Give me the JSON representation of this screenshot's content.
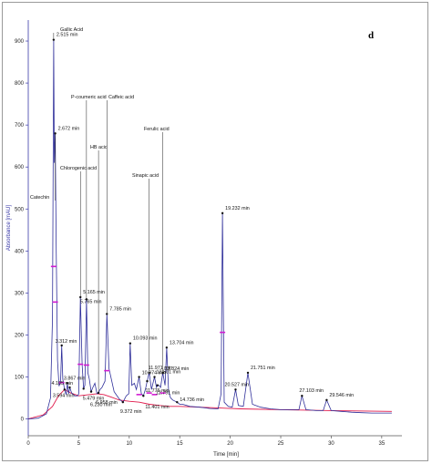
{
  "chart_data": {
    "type": "line",
    "panel_letter": "d",
    "xlabel": "Time [min]",
    "ylabel": "Absorbance [mAU]",
    "xlim": [
      0,
      37
    ],
    "ylim": [
      -40,
      950
    ],
    "x_ticks": [
      0,
      5,
      10,
      15,
      20,
      25,
      30,
      35
    ],
    "y_ticks": [
      0,
      100,
      200,
      300,
      400,
      500,
      600,
      700,
      800,
      900
    ],
    "grid": false,
    "colors": {
      "signal": "#2f2f9a",
      "baseline": "#e0184a",
      "marker": "#d21ad2",
      "axis": "#3a3aa8"
    },
    "series": [
      {
        "name": "",
        "x": [
          0,
          1.0,
          1.8,
          2.2,
          2.4,
          2.515,
          2.58,
          2.672,
          2.76,
          2.9,
          3.05,
          3.2,
          3.312,
          3.42,
          3.594,
          3.75,
          3.867,
          4.0,
          4.105,
          4.3,
          4.6,
          4.9,
          5.0,
          5.165,
          5.33,
          5.479,
          5.6,
          5.765,
          5.9,
          6.05,
          6.23,
          6.4,
          6.6,
          6.8,
          6.958,
          7.1,
          7.3,
          7.6,
          7.785,
          8.0,
          8.5,
          9.0,
          9.372,
          9.7,
          9.95,
          10.093,
          10.25,
          10.5,
          10.7,
          10.974,
          11.2,
          11.401,
          11.6,
          11.776,
          11.971,
          12.2,
          12.501,
          12.7,
          12.791,
          12.95,
          13.1,
          13.324,
          13.55,
          13.704,
          13.9,
          14.1,
          14.3,
          14.736,
          15.0,
          15.3,
          16.0,
          17.0,
          18.0,
          18.8,
          19.1,
          19.232,
          19.4,
          19.8,
          20.2,
          20.527,
          20.8,
          21.3,
          21.751,
          22.2,
          23.0,
          24.0,
          25.0,
          26.0,
          26.8,
          27.103,
          27.5,
          28.5,
          29.2,
          29.546,
          30.0,
          31.0,
          32.0,
          33.0,
          34.0,
          35.0,
          36.0
        ],
        "y": [
          0,
          2,
          12,
          50,
          240,
          903,
          610,
          680,
          420,
          140,
          78,
          90,
          175,
          95,
          70,
          58,
          85,
          60,
          75,
          62,
          55,
          55,
          60,
          290,
          130,
          72,
          80,
          285,
          110,
          95,
          65,
          75,
          85,
          60,
          62,
          70,
          75,
          90,
          250,
          120,
          65,
          48,
          40,
          55,
          60,
          180,
          80,
          85,
          70,
          100,
          60,
          55,
          70,
          90,
          110,
          70,
          100,
          75,
          80,
          80,
          75,
          110,
          80,
          170,
          65,
          50,
          45,
          40,
          35,
          35,
          30,
          28,
          25,
          24,
          60,
          490,
          40,
          30,
          28,
          70,
          32,
          30,
          110,
          35,
          28,
          24,
          22,
          22,
          22,
          55,
          22,
          20,
          20,
          45,
          20,
          18,
          16,
          15,
          14,
          14,
          14
        ]
      },
      {
        "name": "",
        "x": [
          0,
          1.5,
          2.4,
          3.0,
          3.6,
          4.2,
          5.0,
          6.0,
          6.8,
          7.5,
          8.2,
          9.0,
          10.0,
          11.0,
          12.0,
          13.0,
          14.0,
          15.0,
          17.0,
          19.0,
          21.0,
          25.0,
          30.0,
          36.0
        ],
        "y": [
          0,
          10,
          30,
          55,
          70,
          62,
          55,
          58,
          60,
          58,
          52,
          45,
          42,
          40,
          35,
          32,
          30,
          30,
          28,
          26,
          24,
          22,
          20,
          18
        ]
      }
    ],
    "peak_times": [
      {
        "t": 2.515,
        "y": 903,
        "label": "2.515 min"
      },
      {
        "t": 2.672,
        "y": 680,
        "label": "2.672 min"
      },
      {
        "t": 3.312,
        "y": 175,
        "label": "3.312 min"
      },
      {
        "t": 3.594,
        "y": 70,
        "label": "3.594 min"
      },
      {
        "t": 3.867,
        "y": 85,
        "label": "3.867 min"
      },
      {
        "t": 4.105,
        "y": 75,
        "label": "4.105 min"
      },
      {
        "t": 5.165,
        "y": 290,
        "label": "5.165 min"
      },
      {
        "t": 5.479,
        "y": 72,
        "label": "5.479 min"
      },
      {
        "t": 5.765,
        "y": 285,
        "label": "5.765 min"
      },
      {
        "t": 6.23,
        "y": 65,
        "label": "6.230 min"
      },
      {
        "t": 6.958,
        "y": 62,
        "label": "6.958 min"
      },
      {
        "t": 7.785,
        "y": 250,
        "label": "7.785 min"
      },
      {
        "t": 9.372,
        "y": 40,
        "label": "9.372 min"
      },
      {
        "t": 10.093,
        "y": 180,
        "label": "10.093 min"
      },
      {
        "t": 10.974,
        "y": 100,
        "label": "10.974 min"
      },
      {
        "t": 11.401,
        "y": 55,
        "label": "11.401 min"
      },
      {
        "t": 11.776,
        "y": 90,
        "label": "11.776 min"
      },
      {
        "t": 11.971,
        "y": 110,
        "label": "11.971 min"
      },
      {
        "t": 12.501,
        "y": 100,
        "label": "12.501 min"
      },
      {
        "t": 12.791,
        "y": 80,
        "label": "12.791 min"
      },
      {
        "t": 13.324,
        "y": 110,
        "label": "13.324 min"
      },
      {
        "t": 13.704,
        "y": 170,
        "label": "13.704 min"
      },
      {
        "t": 14.736,
        "y": 40,
        "label": "14.736 min"
      },
      {
        "t": 19.232,
        "y": 490,
        "label": "19.232 min"
      },
      {
        "t": 20.527,
        "y": 70,
        "label": "20.527 min"
      },
      {
        "t": 21.751,
        "y": 110,
        "label": "21.751 min"
      },
      {
        "t": 27.103,
        "y": 55,
        "label": "27.103 min"
      },
      {
        "t": 29.546,
        "y": 45,
        "label": "29.546 min"
      }
    ],
    "compounds": [
      {
        "name": "Gallic Acid",
        "t": 2.515
      },
      {
        "name": "Catechin",
        "t": 2.672
      },
      {
        "name": "Chlorogenic acid",
        "t": 5.165
      },
      {
        "name": "P-coumeric acid",
        "t": 5.765
      },
      {
        "name": "HB acid",
        "t": 6.958
      },
      {
        "name": "Caffeic acid",
        "t": 7.785
      },
      {
        "name": "Sinapic acid",
        "t": 11.971
      },
      {
        "name": "Ferulic acid",
        "t": 13.324
      }
    ],
    "marker_peaks": [
      2.515,
      2.672,
      3.312,
      5.165,
      5.765,
      7.785,
      10.974,
      11.971,
      12.501,
      13.324,
      19.232
    ]
  }
}
